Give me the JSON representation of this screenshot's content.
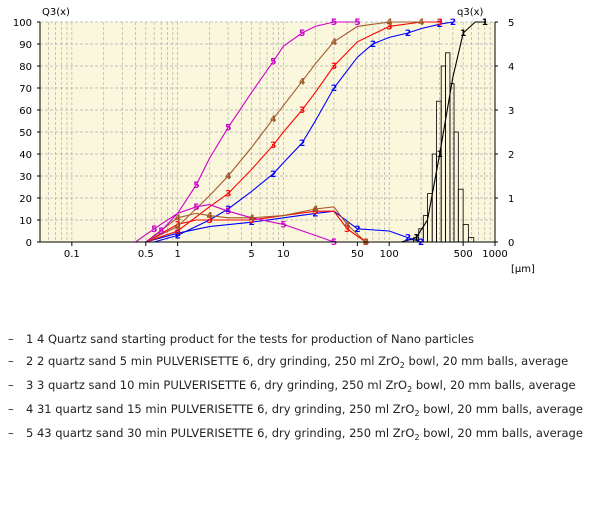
{
  "chart_data": {
    "type": "line",
    "x_scale": "log",
    "xlim": [
      0.05,
      1000
    ],
    "xticks": [
      {
        "value": 0.1,
        "label": "0.1"
      },
      {
        "value": 0.5,
        "label": "0.5"
      },
      {
        "value": 1,
        "label": "1"
      },
      {
        "value": 5,
        "label": "5"
      },
      {
        "value": 10,
        "label": "10"
      },
      {
        "value": 50,
        "label": "50"
      },
      {
        "value": 100,
        "label": "100"
      },
      {
        "value": 500,
        "label": "500"
      },
      {
        "value": 1000,
        "label": "1000"
      }
    ],
    "xunit": "[µm]",
    "y_left": {
      "label": "Q3(x)",
      "lim": [
        0,
        100
      ],
      "ticks": [
        "0",
        "10",
        "20",
        "30",
        "40",
        "50",
        "60",
        "70",
        "80",
        "90",
        "100"
      ]
    },
    "y_right": {
      "label": "q3(x)",
      "lim": [
        0,
        5
      ],
      "ticks": [
        "0",
        "1",
        "2",
        "3",
        "4",
        "5"
      ]
    },
    "grid": true,
    "series": [
      {
        "name": "1",
        "color": "#000000",
        "axis": "left",
        "x": [
          130,
          180,
          230,
          300,
          400,
          500,
          650,
          800
        ],
        "y": [
          0,
          2,
          10,
          40,
          75,
          95,
          100,
          100
        ]
      },
      {
        "name": "1",
        "color": "#000000",
        "axis": "right",
        "type": "bar",
        "bins": [
          {
            "x0": 150,
            "x1": 170,
            "y": 0.05
          },
          {
            "x0": 170,
            "x1": 190,
            "y": 0.1
          },
          {
            "x0": 190,
            "x1": 210,
            "y": 0.3
          },
          {
            "x0": 210,
            "x1": 230,
            "y": 0.6
          },
          {
            "x0": 230,
            "x1": 255,
            "y": 1.1
          },
          {
            "x0": 255,
            "x1": 280,
            "y": 2.0
          },
          {
            "x0": 280,
            "x1": 310,
            "y": 3.2
          },
          {
            "x0": 310,
            "x1": 340,
            "y": 4.0
          },
          {
            "x0": 340,
            "x1": 375,
            "y": 4.3
          },
          {
            "x0": 375,
            "x1": 410,
            "y": 3.6
          },
          {
            "x0": 410,
            "x1": 450,
            "y": 2.5
          },
          {
            "x0": 450,
            "x1": 500,
            "y": 1.2
          },
          {
            "x0": 500,
            "x1": 560,
            "y": 0.4
          },
          {
            "x0": 560,
            "x1": 630,
            "y": 0.1
          }
        ]
      },
      {
        "name": "2",
        "color": "#0000ff",
        "axis": "left",
        "x": [
          0.6,
          1,
          2,
          3,
          5,
          8,
          10,
          15,
          20,
          30,
          50,
          70,
          100,
          150,
          200,
          300,
          400
        ],
        "y": [
          0,
          3,
          10,
          15,
          23,
          31,
          36,
          45,
          55,
          70,
          84,
          90,
          93,
          95,
          97,
          99,
          100
        ]
      },
      {
        "name": "2",
        "color": "#0000ff",
        "axis": "right",
        "x": [
          0.5,
          1,
          2,
          5,
          10,
          20,
          30,
          50,
          100,
          150,
          200
        ],
        "y": [
          0,
          0.2,
          0.35,
          0.45,
          0.55,
          0.65,
          0.7,
          0.3,
          0.25,
          0.1,
          0
        ]
      },
      {
        "name": "3",
        "color": "#ff0000",
        "axis": "left",
        "x": [
          0.5,
          1,
          2,
          3,
          5,
          8,
          10,
          15,
          20,
          30,
          50,
          100,
          200,
          300
        ],
        "y": [
          0,
          5,
          16,
          22,
          33,
          44,
          50,
          60,
          68,
          80,
          91,
          98,
          100,
          100
        ]
      },
      {
        "name": "3",
        "color": "#ff0000",
        "axis": "right",
        "x": [
          0.5,
          1,
          1.5,
          2,
          3,
          5,
          10,
          20,
          30,
          40,
          60
        ],
        "y": [
          0,
          0.4,
          0.5,
          0.5,
          0.5,
          0.5,
          0.6,
          0.7,
          0.7,
          0.3,
          0
        ]
      },
      {
        "name": "4",
        "color": "#a05a2c",
        "axis": "left",
        "x": [
          0.5,
          1,
          2,
          3,
          5,
          8,
          10,
          15,
          20,
          30,
          50,
          100,
          200
        ],
        "y": [
          0,
          7,
          21,
          30,
          43,
          56,
          62,
          73,
          81,
          91,
          98,
          100,
          100
        ]
      },
      {
        "name": "4",
        "color": "#a05a2c",
        "axis": "right",
        "x": [
          0.5,
          1,
          1.5,
          2,
          3,
          5,
          10,
          20,
          30,
          40,
          60
        ],
        "y": [
          0,
          0.55,
          0.65,
          0.6,
          0.55,
          0.55,
          0.6,
          0.75,
          0.8,
          0.4,
          0
        ]
      },
      {
        "name": "5",
        "color": "#cc00cc",
        "axis": "left",
        "x": [
          0.5,
          0.7,
          1,
          1.5,
          2,
          3,
          5,
          8,
          10,
          15,
          20,
          30,
          50
        ],
        "y": [
          0,
          5,
          13,
          26,
          38,
          52,
          68,
          82,
          89,
          95,
          98,
          100,
          100
        ]
      },
      {
        "name": "5",
        "color": "#cc00cc",
        "axis": "right",
        "x": [
          0.4,
          0.6,
          1,
          1.5,
          2,
          3,
          5,
          10,
          20,
          30
        ],
        "y": [
          0,
          0.3,
          0.65,
          0.8,
          0.85,
          0.7,
          0.55,
          0.4,
          0.15,
          0
        ]
      }
    ]
  },
  "legend": [
    {
      "dash": "–",
      "text": "1 4 Quartz sand starting product for the tests for production of Nano particles"
    },
    {
      "dash": "–",
      "text_before": "2 2 quartz sand 5 min PULVERISETTE 6, dry grinding, 250 ml ZrO",
      "sub": "2",
      "text_after": " bowl, 20 mm balls, average"
    },
    {
      "dash": "–",
      "text_before": "3 3 quartz sand 10 min PULVERISETTE 6, dry grinding, 250 ml ZrO",
      "sub": "2",
      "text_after": " bowl, 20 mm balls, average"
    },
    {
      "dash": "–",
      "text_before": "4 31 quartz sand 15 min PULVERISETTE 6, dry grinding, 250 ml ZrO",
      "sub": "2",
      "text_after": " bowl, 20 mm balls, average"
    },
    {
      "dash": "–",
      "text_before": "5 43 quartz sand 30 min PULVERISETTE 6, dry grinding, 250 ml ZrO",
      "sub": "2",
      "text_after": " bowl, 20 mm balls, average"
    }
  ],
  "colors": {
    "plot_bg": "#fbf7dc",
    "grid": "#b0b0b0",
    "axis": "#000000"
  }
}
